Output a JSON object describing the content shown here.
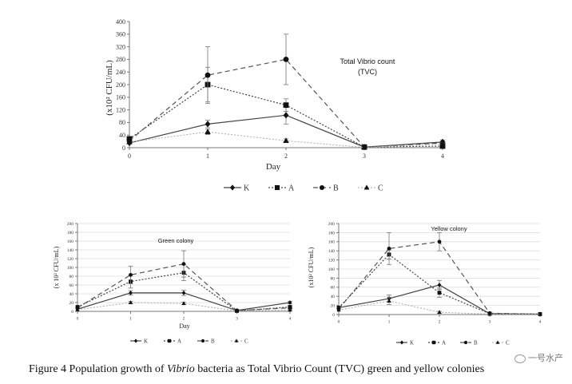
{
  "caption": {
    "prefix": "Figure 4 Population growth of ",
    "italic": "Vibrio",
    "suffix": " bacteria as Total Vibrio Count (TVC) green and yellow colonies"
  },
  "watermark": "一号水产",
  "chart_data": [
    {
      "type": "line",
      "title": "Total Vibrio count",
      "title_line2": "(TVC)",
      "xlabel": "Day",
      "ylabel": "(x10² CFU/mL)",
      "x": [
        0,
        1,
        2,
        3,
        4
      ],
      "xlim": [
        0,
        4
      ],
      "ylim": [
        0,
        400
      ],
      "yticks": [
        0,
        40,
        80,
        120,
        160,
        200,
        240,
        280,
        320,
        360,
        400
      ],
      "grid": false,
      "legend": "bottom",
      "series": [
        {
          "name": "K",
          "marker": "diamond",
          "dash": "solid",
          "values": [
            15,
            75,
            103,
            2,
            18
          ],
          "errors": [
            0,
            12,
            28,
            0,
            6
          ]
        },
        {
          "name": "A",
          "marker": "square",
          "dash": "dotted",
          "values": [
            28,
            200,
            135,
            2,
            5
          ],
          "errors": [
            0,
            55,
            20,
            0,
            2
          ]
        },
        {
          "name": "B",
          "marker": "circle",
          "dash": "dashed",
          "values": [
            22,
            230,
            280,
            2,
            15
          ],
          "errors": [
            0,
            90,
            80,
            0,
            4
          ]
        },
        {
          "name": "C",
          "marker": "triangle",
          "dash": "dotted-light",
          "values": [
            18,
            50,
            22,
            1,
            12
          ],
          "errors": [
            0,
            8,
            6,
            0,
            3
          ]
        }
      ]
    },
    {
      "type": "line",
      "title": "Green colony",
      "xlabel": "Day",
      "ylabel": "(x 10² CFU/mL)",
      "x": [
        0,
        1,
        2,
        3,
        4
      ],
      "xlim": [
        0,
        4
      ],
      "ylim": [
        0,
        200
      ],
      "yticks": [
        0,
        20,
        40,
        60,
        80,
        100,
        120,
        140,
        160,
        180,
        200
      ],
      "grid": true,
      "legend": "bottom",
      "series": [
        {
          "name": "K",
          "marker": "diamond",
          "dash": "solid",
          "values": [
            5,
            42,
            42,
            2,
            20
          ],
          "errors": [
            0,
            5,
            6,
            0,
            3
          ]
        },
        {
          "name": "A",
          "marker": "square",
          "dash": "dotted",
          "values": [
            10,
            68,
            88,
            1,
            10
          ],
          "errors": [
            0,
            15,
            18,
            0,
            3
          ]
        },
        {
          "name": "B",
          "marker": "circle",
          "dash": "dashed",
          "values": [
            8,
            83,
            108,
            2,
            8
          ],
          "errors": [
            0,
            20,
            30,
            0,
            2
          ]
        },
        {
          "name": "C",
          "marker": "triangle",
          "dash": "dotted-light",
          "values": [
            4,
            20,
            18,
            1,
            3
          ],
          "errors": [
            0,
            3,
            3,
            0,
            1
          ]
        }
      ]
    },
    {
      "type": "line",
      "title": "Yellow  colony",
      "xlabel": "",
      "ylabel": "(x10² CFU/mL)",
      "x": [
        0,
        1,
        2,
        3,
        4
      ],
      "xlim": [
        0,
        4
      ],
      "ylim": [
        0,
        200
      ],
      "yticks": [
        0,
        20,
        40,
        60,
        80,
        100,
        120,
        140,
        160,
        180,
        200
      ],
      "grid": true,
      "legend": "bottom",
      "series": [
        {
          "name": "K",
          "marker": "diamond",
          "dash": "solid",
          "values": [
            15,
            35,
            65,
            2,
            1
          ],
          "errors": [
            0,
            8,
            10,
            0,
            0
          ]
        },
        {
          "name": "A",
          "marker": "square",
          "dash": "dotted",
          "values": [
            15,
            132,
            48,
            2,
            1
          ],
          "errors": [
            0,
            10,
            10,
            0,
            0
          ]
        },
        {
          "name": "B",
          "marker": "circle",
          "dash": "dashed",
          "values": [
            12,
            145,
            160,
            3,
            1
          ],
          "errors": [
            0,
            35,
            20,
            0,
            0
          ]
        },
        {
          "name": "C",
          "marker": "triangle",
          "dash": "dotted-light",
          "values": [
            10,
            30,
            5,
            1,
            1
          ],
          "errors": [
            0,
            8,
            2,
            0,
            0
          ]
        }
      ]
    }
  ]
}
